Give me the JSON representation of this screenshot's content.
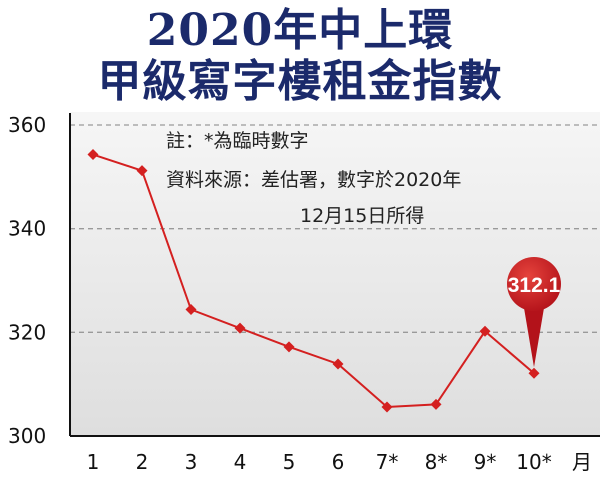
{
  "header": {
    "title_line1": "2020年中上環",
    "title_line2": "甲級寫字樓租金指數"
  },
  "notes": {
    "line1": "註：*為臨時數字",
    "line2": "資料來源：差估署，數字於2020年",
    "line3": "12月15日所得"
  },
  "colors": {
    "title": "#1b2a6b",
    "series": "#d42020",
    "grid": "#9a9a9a",
    "plot_bg": "#e9e9e9"
  },
  "chart_data": {
    "type": "line",
    "categories": [
      "1",
      "2",
      "3",
      "4",
      "5",
      "6",
      "7*",
      "8*",
      "9*",
      "10*"
    ],
    "x_unit": "月",
    "series": [
      {
        "values": [
          354.3,
          351.2,
          324.4,
          320.8,
          317.2,
          313.9,
          305.6,
          306.1,
          320.2,
          312.1
        ]
      }
    ],
    "yticks": [
      300,
      320,
      340,
      360
    ],
    "ylim": [
      300,
      360
    ],
    "grid": true,
    "callout": {
      "index": 9,
      "label": "312.1"
    }
  }
}
